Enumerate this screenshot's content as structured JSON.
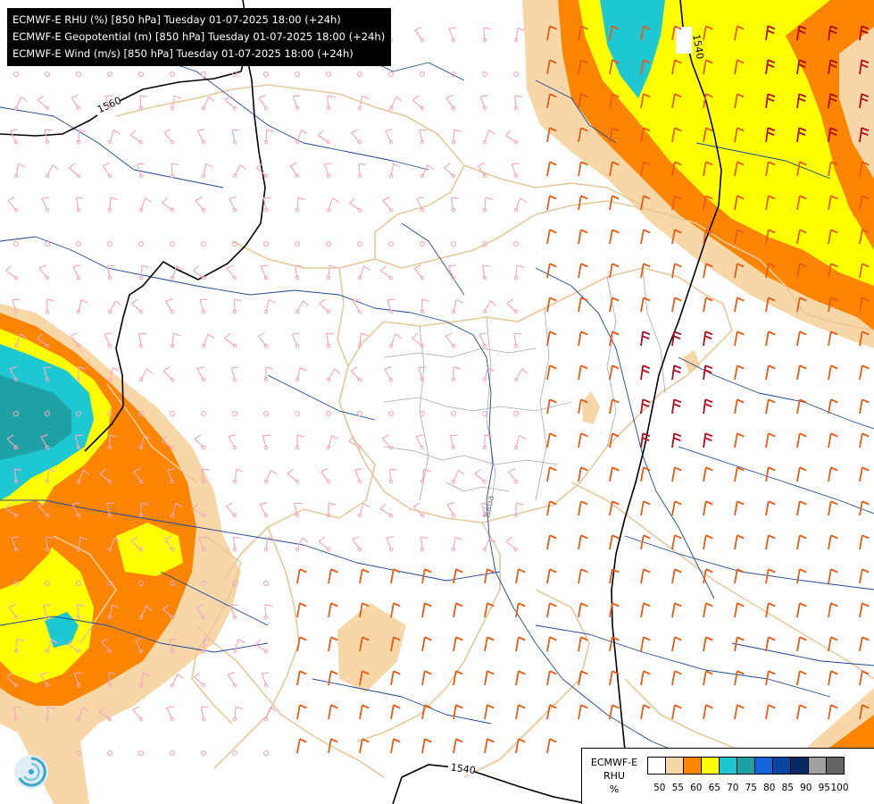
{
  "header": {
    "lines": [
      "ECMWF-E RHU (%) [850 hPa] Tuesday 01-07-2025 18:00 (+24h)",
      "ECMWF-E Geopotential (m) [850 hPa] Tuesday 01-07-2025 18:00 (+24h)",
      "ECMWF-E Wind (m/s) [850 hPa] Tuesday 01-07-2025 18:00 (+24h)"
    ]
  },
  "contours": {
    "label_1560": "1560",
    "label_1540_top": "1540",
    "label_1540_bottom": "1540"
  },
  "map_labels": {
    "river": "Rába"
  },
  "legend": {
    "title_line1": "ECMWF-E",
    "title_line2": "RHU",
    "unit": "%",
    "levels": [
      "50",
      "55",
      "60",
      "65",
      "70",
      "75",
      "80",
      "85",
      "90",
      "95",
      "100"
    ],
    "colors": [
      "#ffffff",
      "#f7d7a8",
      "#fb8500",
      "#ffff00",
      "#1ec8d2",
      "#1ea0a5",
      "#1464dc",
      "#0a46a0",
      "#0a2864",
      "#a0a0a0",
      "#646464"
    ]
  },
  "colors": {
    "rh_55": "#f7d7a8",
    "rh_60": "#fb8500",
    "rh_65": "#ffff00",
    "rh_70": "#1ec8d2",
    "rh_75": "#1ea0a5",
    "border": "#e6c89a",
    "river": "#1e4696",
    "wind_light": "#f5a8c0",
    "wind_mid": "#e85a14",
    "wind_strong": "#b40a1e"
  }
}
